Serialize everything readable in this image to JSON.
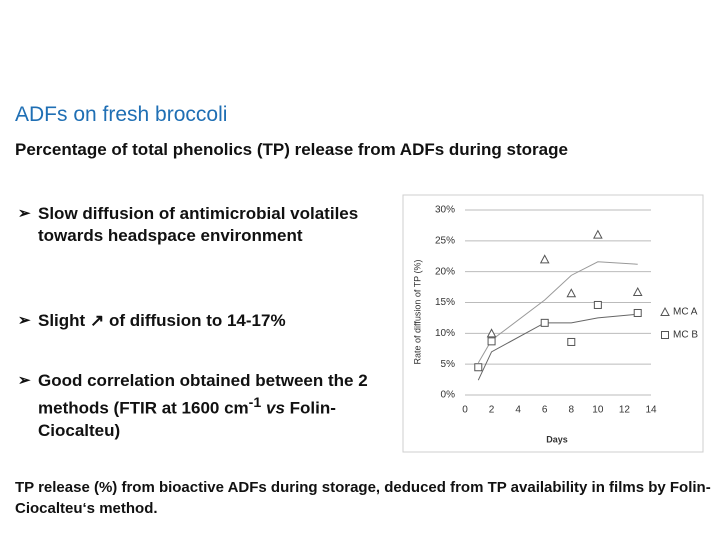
{
  "slide": {
    "title": "ADFs on fresh broccoli",
    "subtitle": "Percentage of total phenolics (TP) release from ADFs during storage",
    "bullets": [
      {
        "parts": [
          "Slow diffusion of antimicrobial volatiles towards headspace environment"
        ]
      },
      {
        "parts": [
          "Slight",
          "of diffusion to 14-17%"
        ]
      },
      {
        "parts": [
          "Good correlation obtained between the 2 methods (FTIR at 1600 cm",
          "-1",
          "vs",
          "Folin-Ciocalteu)"
        ]
      }
    ],
    "caption": "TP release (%) from bioactive ADFs during storage, deduced from TP availability in films by Folin-Ciocalteu‘s method."
  },
  "chart_data": {
    "type": "scatter",
    "x_label": "Days",
    "y_label": "Rate of diffusion of TP (%)",
    "xlim": [
      0,
      14
    ],
    "xticks": [
      0,
      2,
      4,
      6,
      8,
      10,
      12,
      14
    ],
    "ylim": [
      0,
      30
    ],
    "yticks": [
      {
        "value": 0,
        "label": "0%"
      },
      {
        "value": 5,
        "label": "5%"
      },
      {
        "value": 10,
        "label": "10%"
      },
      {
        "value": 15,
        "label": "15%"
      },
      {
        "value": 20,
        "label": "20%"
      },
      {
        "value": 25,
        "label": "25%"
      },
      {
        "value": 30,
        "label": "30%"
      }
    ],
    "grid": true,
    "legend": "right",
    "series": [
      {
        "name": "MC A",
        "marker": "triangle",
        "color": "#555555",
        "x": [
          2,
          6,
          8,
          10,
          13
        ],
        "values": [
          10.0,
          22.0,
          16.5,
          26.0,
          16.7
        ]
      },
      {
        "name": "MC B",
        "marker": "square",
        "color": "#555555",
        "x": [
          1,
          2,
          6,
          8,
          10,
          13
        ],
        "values": [
          4.5,
          8.7,
          11.7,
          8.6,
          14.6,
          13.3
        ]
      }
    ],
    "trend_lines": [
      {
        "color": "#999999",
        "x": [
          1,
          2,
          6,
          8,
          10,
          13
        ],
        "values": [
          5.2,
          8.9,
          15.4,
          19.4,
          21.6,
          21.2
        ]
      },
      {
        "color": "#666666",
        "x": [
          1,
          2,
          6,
          8,
          10,
          13
        ],
        "values": [
          2.4,
          7.0,
          11.7,
          11.7,
          12.5,
          13.1
        ]
      }
    ]
  }
}
